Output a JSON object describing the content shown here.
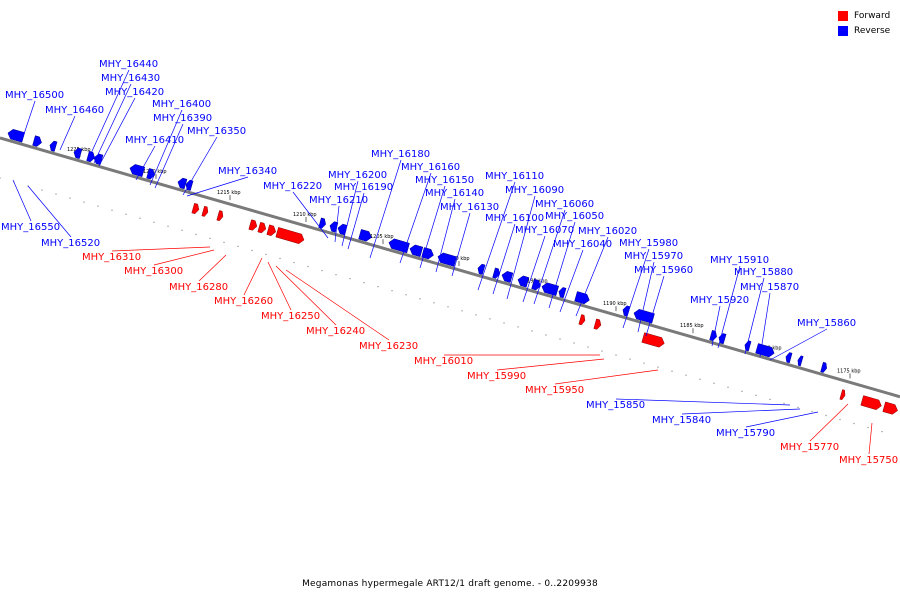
{
  "colors": {
    "forward": "#ff0000",
    "reverse": "#0000ff",
    "backbone": "#7a7a7a"
  },
  "legend": {
    "forward": "Forward",
    "reverse": "Reverse"
  },
  "caption": "Megamonas hypermegale ART12/1 draft genome. - 0..2209938",
  "ticks": [
    "1225 kbp",
    "1220 kbp",
    "1215 kbp",
    "1210 kbp",
    "1205 kbp",
    "1200 kbp",
    "1195 kbp",
    "1190 kbp",
    "1185 kbp",
    "1180 kbp",
    "1175 kbp"
  ],
  "genes": [
    "MHY_16500",
    "MHY_16460",
    "MHY_16440",
    "MHY_16430",
    "MHY_16420",
    "MHY_16410",
    "MHY_16400",
    "MHY_16390",
    "MHY_16350",
    "MHY_16340",
    "MHY_16220",
    "MHY_16210",
    "MHY_16200",
    "MHY_16190",
    "MHY_16180",
    "MHY_16160",
    "MHY_16150",
    "MHY_16140",
    "MHY_16130",
    "MHY_16110",
    "MHY_16100",
    "MHY_16090",
    "MHY_16070",
    "MHY_16060",
    "MHY_16050",
    "MHY_16040",
    "MHY_16020",
    "MHY_15980",
    "MHY_15970",
    "MHY_15960",
    "MHY_15920",
    "MHY_15910",
    "MHY_15880",
    "MHY_15870",
    "MHY_15860",
    "MHY_16550",
    "MHY_16520",
    "MHY_16310",
    "MHY_16300",
    "MHY_16280",
    "MHY_16260",
    "MHY_16250",
    "MHY_16240",
    "MHY_16230",
    "MHY_16010",
    "MHY_15990",
    "MHY_15950",
    "MHY_15850",
    "MHY_15840",
    "MHY_15790",
    "MHY_15770",
    "MHY_15750"
  ]
}
